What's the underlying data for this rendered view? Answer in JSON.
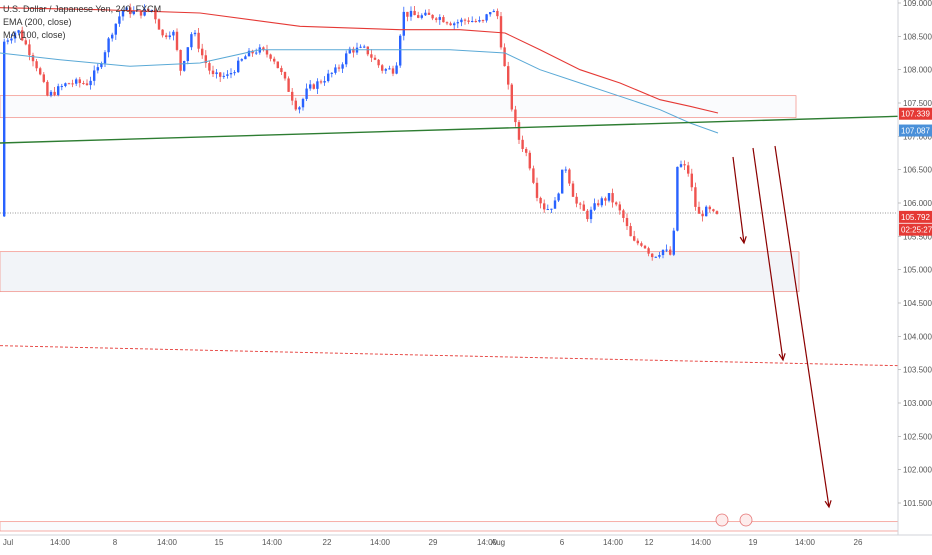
{
  "chart_data": {
    "type": "candlestick",
    "title": "U.S. Dollar / Japanese Yen, 240, FXCM",
    "indicators": [
      {
        "name": "EMA (200, close)",
        "color": "#e53935"
      },
      {
        "name": "MA (100, close)",
        "color": "#5aa9d6"
      }
    ],
    "y_axis": {
      "min": 101.2,
      "max": 109.05,
      "ticks": [
        101.5,
        102.0,
        102.5,
        103.0,
        103.5,
        104.0,
        104.5,
        105.0,
        105.5,
        106.0,
        106.5,
        107.0,
        107.5,
        108.0,
        108.5,
        109.0
      ],
      "tick_labels": [
        "101.500",
        "102.000",
        "102.500",
        "103.000",
        "103.500",
        "104.000",
        "104.500",
        "105.000",
        "105.500",
        "106.000",
        "106.500",
        "107.000",
        "107.500",
        "108.000",
        "108.500",
        "109.000"
      ]
    },
    "x_axis": {
      "labels": [
        "Jul",
        "14:00",
        "8",
        "14:00",
        "15",
        "14:00",
        "22",
        "14:00",
        "29",
        "14:00",
        "Aug",
        "6",
        "14:00",
        "12",
        "14:00",
        "19",
        "14:00",
        "26"
      ]
    },
    "price_badges": [
      {
        "label": "107.339",
        "value": 107.339,
        "color": "#e53935"
      },
      {
        "label": "107.087",
        "value": 107.087,
        "color": "#4a90d9"
      },
      {
        "label": "105.792",
        "value": 105.792,
        "color": "#e53935"
      },
      {
        "label": "02:25:27",
        "value": 105.6,
        "color": "#e53935"
      }
    ],
    "current_price": 105.85,
    "grid": false,
    "colors": {
      "up": "#2962ff",
      "down": "#ef5350",
      "trendline": "#2e7d32",
      "arrow": "#8b0000",
      "zone_border": "#f28b82",
      "zone_fill": "#f2f4f8"
    }
  }
}
